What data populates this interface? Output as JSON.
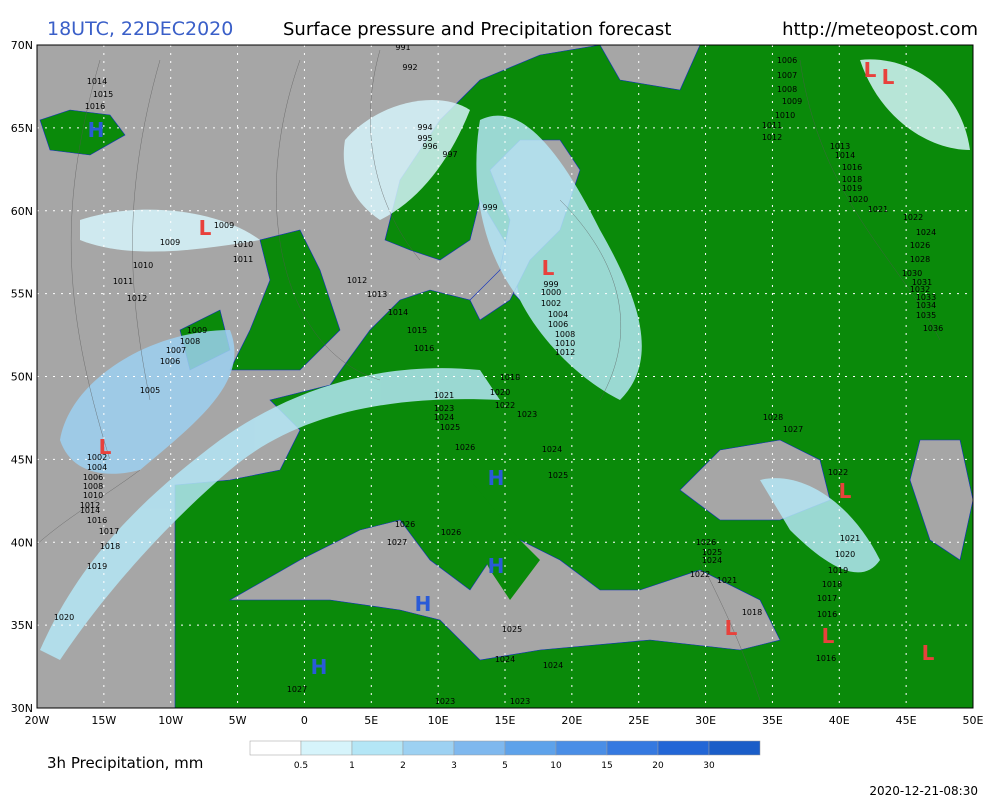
{
  "header": {
    "run": "18UTC, 22DEC2020",
    "title": "Surface pressure and Precipitation forecast",
    "url": "http://meteopost.com"
  },
  "map": {
    "lat_labels": [
      "70N",
      "65N",
      "60N",
      "55N",
      "50N",
      "45N",
      "40N",
      "35N",
      "30N"
    ],
    "lon_labels": [
      "20W",
      "15W",
      "10W",
      "5W",
      "0",
      "5E",
      "10E",
      "15E",
      "20E",
      "25E",
      "30E",
      "35E",
      "40E",
      "45E",
      "50E"
    ],
    "pressure_centers": [
      {
        "label": "H",
        "color": "#2a5bd7"
      },
      {
        "label": "H",
        "color": "#2a5bd7"
      },
      {
        "label": "H",
        "color": "#2a5bd7"
      },
      {
        "label": "H",
        "color": "#2a5bd7"
      },
      {
        "label": "H",
        "color": "#2a5bd7"
      },
      {
        "label": "L",
        "color": "#e8413c"
      },
      {
        "label": "L",
        "color": "#e8413c"
      },
      {
        "label": "L",
        "color": "#e8413c"
      },
      {
        "label": "L",
        "color": "#e8413c"
      },
      {
        "label": "L",
        "color": "#e8413c"
      },
      {
        "label": "L",
        "color": "#e8413c"
      },
      {
        "label": "L",
        "color": "#e8413c"
      },
      {
        "label": "L",
        "color": "#e8413c"
      },
      {
        "label": "L",
        "color": "#e8413c"
      }
    ],
    "isobar_labels": [
      "991",
      "992",
      "1014",
      "1015",
      "1016",
      "994",
      "995",
      "996",
      "997",
      "999",
      "1009",
      "1009",
      "1010",
      "1011",
      "1010",
      "1011",
      "1012",
      "1012",
      "1013",
      "1014",
      "1015",
      "999",
      "1000",
      "1002",
      "1004",
      "1006",
      "1008",
      "1010",
      "1012",
      "1009",
      "1008",
      "1007",
      "1006",
      "1005",
      "1016",
      "1018",
      "1020",
      "1021",
      "1022",
      "1023",
      "1023",
      "1024",
      "1025",
      "1026",
      "1024",
      "1025",
      "1026",
      "1027",
      "1026",
      "1002",
      "1004",
      "1006",
      "1008",
      "1010",
      "1012",
      "1014",
      "1016",
      "1017",
      "1018",
      "1019",
      "1020",
      "1025",
      "1024",
      "1024",
      "1027",
      "1023",
      "1023",
      "1028",
      "1027",
      "1022",
      "1021",
      "1020",
      "1019",
      "1018",
      "1017",
      "1016",
      "1016",
      "1018",
      "1026",
      "1025",
      "1024",
      "1022",
      "1021",
      "1006",
      "1007",
      "1008",
      "1009",
      "1010",
      "1011",
      "1012",
      "1013",
      "1014",
      "1016",
      "1018",
      "1019",
      "1020",
      "1021",
      "1022",
      "1024",
      "1026",
      "1028",
      "1030",
      "1031",
      "1032",
      "1033",
      "1034",
      "1035",
      "1036"
    ]
  },
  "legend": {
    "title": "3h Precipitation, mm",
    "labels": [
      "0.5",
      "1",
      "2",
      "3",
      "5",
      "10",
      "15",
      "20",
      "30"
    ],
    "colors": [
      "#ffffff",
      "#d6f4fb",
      "#b4e6f6",
      "#9dd1f2",
      "#7fb8ee",
      "#5ea2ea",
      "#4a8ee6",
      "#3579e0",
      "#2266d6",
      "#1a5dc8"
    ]
  },
  "footer": {
    "timestamp": "2020-12-21-08:30"
  }
}
